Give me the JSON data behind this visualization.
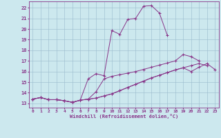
{
  "xlabel": "Windchill (Refroidissement éolien,°C)",
  "bg_color": "#cce8ee",
  "line_color": "#883388",
  "grid_color": "#99bbcc",
  "xlim": [
    -0.5,
    23.5
  ],
  "ylim": [
    12.6,
    22.6
  ],
  "yticks": [
    13,
    14,
    15,
    16,
    17,
    18,
    19,
    20,
    21,
    22
  ],
  "xticks": [
    0,
    1,
    2,
    3,
    4,
    5,
    6,
    7,
    8,
    9,
    10,
    11,
    12,
    13,
    14,
    15,
    16,
    17,
    18,
    19,
    20,
    21,
    22,
    23
  ],
  "curve1_x": [
    0,
    1,
    2,
    3,
    4,
    5,
    6,
    7,
    8,
    9,
    10,
    11,
    12,
    13,
    14,
    15,
    16,
    17
  ],
  "curve1_y": [
    13.4,
    13.55,
    13.35,
    13.35,
    13.25,
    13.1,
    13.3,
    15.3,
    15.8,
    15.6,
    19.85,
    19.5,
    20.9,
    21.0,
    22.15,
    22.2,
    21.5,
    19.4
  ],
  "curve2_x": [
    0,
    1,
    2,
    3,
    4,
    5,
    6,
    7,
    8,
    9,
    10,
    11,
    12,
    13,
    14,
    15,
    16,
    17,
    18,
    19,
    20,
    21,
    22,
    23
  ],
  "curve2_y": [
    13.4,
    13.55,
    13.35,
    13.35,
    13.25,
    13.1,
    13.3,
    13.4,
    13.5,
    13.7,
    13.9,
    14.2,
    14.5,
    14.8,
    15.1,
    15.4,
    15.65,
    15.9,
    16.15,
    16.35,
    16.0,
    16.4,
    16.75,
    16.2
  ],
  "curve3_x": [
    0,
    1,
    2,
    3,
    4,
    5,
    6,
    7,
    8,
    9,
    10,
    11,
    12,
    13,
    14,
    15,
    16,
    17,
    18,
    19,
    20,
    21
  ],
  "curve3_y": [
    13.4,
    13.55,
    13.35,
    13.35,
    13.25,
    13.1,
    13.3,
    13.4,
    14.1,
    15.3,
    15.55,
    15.7,
    15.85,
    16.0,
    16.2,
    16.4,
    16.6,
    16.8,
    17.0,
    17.6,
    17.4,
    17.0
  ],
  "curve4_x": [
    0,
    1,
    2,
    3,
    4,
    5,
    6,
    7,
    8,
    9,
    10,
    11,
    12,
    13,
    14,
    15,
    16,
    17,
    18,
    19,
    20,
    21,
    22,
    23
  ],
  "curve4_y": [
    13.4,
    13.55,
    13.35,
    13.35,
    13.25,
    13.1,
    13.3,
    13.4,
    13.5,
    13.7,
    13.9,
    14.2,
    14.5,
    14.8,
    15.1,
    15.4,
    15.65,
    15.9,
    16.15,
    16.35,
    16.55,
    16.75,
    16.55,
    null
  ]
}
